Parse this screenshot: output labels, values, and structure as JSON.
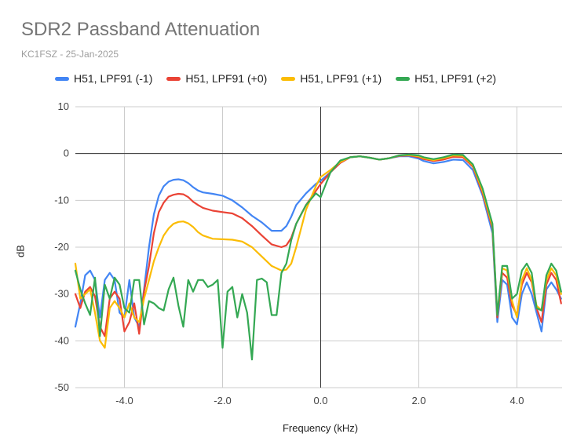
{
  "chart_data": {
    "type": "line",
    "title": "SDR2 Passband Attenuation",
    "subtitle": "KC1FSZ - 25-Jan-2025",
    "xlabel": "Frequency (kHz)",
    "ylabel": "dB",
    "xlim": [
      -5.0,
      4.9
    ],
    "ylim": [
      -50,
      10
    ],
    "xticks": [
      -4.0,
      -2.0,
      0.0,
      2.0,
      4.0
    ],
    "xtick_labels": [
      "-4.0",
      "-2.0",
      "0.0",
      "2.0",
      "4.0"
    ],
    "yticks": [
      10,
      0,
      -10,
      -20,
      -30,
      -40,
      -50
    ],
    "ytick_labels": [
      "10",
      "0",
      "-10",
      "-20",
      "-30",
      "-40",
      "-50"
    ],
    "grid": true,
    "legend_position": "top",
    "series": [
      {
        "name": "H51, LPF91 (-1)",
        "color": "#4285f4",
        "x": [
          -5.0,
          -4.9,
          -4.8,
          -4.7,
          -4.6,
          -4.5,
          -4.4,
          -4.3,
          -4.2,
          -4.1,
          -4.0,
          -3.9,
          -3.8,
          -3.7,
          -3.6,
          -3.5,
          -3.4,
          -3.3,
          -3.2,
          -3.1,
          -3.0,
          -2.9,
          -2.8,
          -2.7,
          -2.6,
          -2.5,
          -2.4,
          -2.2,
          -2.0,
          -1.8,
          -1.6,
          -1.4,
          -1.2,
          -1.0,
          -0.8,
          -0.7,
          -0.6,
          -0.5,
          -0.3,
          -0.1,
          0.0,
          0.2,
          0.4,
          0.6,
          0.8,
          1.0,
          1.2,
          1.4,
          1.6,
          1.8,
          2.0,
          2.1,
          2.3,
          2.5,
          2.7,
          2.9,
          3.1,
          3.3,
          3.5,
          3.6,
          3.7,
          3.8,
          3.9,
          4.0,
          4.1,
          4.2,
          4.3,
          4.4,
          4.5,
          4.6,
          4.7,
          4.8,
          4.9
        ],
        "values": [
          -37,
          -32,
          -26,
          -25,
          -27,
          -35,
          -27,
          -25.5,
          -27,
          -34,
          -35,
          -27,
          -35,
          -37,
          -29,
          -20,
          -13,
          -9,
          -7,
          -6,
          -5.6,
          -5.5,
          -5.7,
          -6.3,
          -7.2,
          -7.9,
          -8.3,
          -8.6,
          -9.0,
          -10.0,
          -11.5,
          -13.3,
          -14.7,
          -16.5,
          -16.5,
          -15.5,
          -13.5,
          -11,
          -8.5,
          -6.5,
          -5.8,
          -4,
          -2,
          -0.8,
          -0.6,
          -0.9,
          -1.3,
          -1.0,
          -0.6,
          -0.6,
          -1.1,
          -1.6,
          -2.1,
          -1.8,
          -1.3,
          -1.4,
          -3.5,
          -9,
          -17,
          -36,
          -27,
          -28,
          -35,
          -36.5,
          -30,
          -27.5,
          -30,
          -34,
          -38,
          -29,
          -27.5,
          -29,
          -31
        ]
      },
      {
        "name": "H51, LPF91 (+0)",
        "color": "#ea4335",
        "x": [
          -5.0,
          -4.9,
          -4.8,
          -4.7,
          -4.6,
          -4.5,
          -4.4,
          -4.3,
          -4.2,
          -4.1,
          -4.0,
          -3.9,
          -3.8,
          -3.7,
          -3.6,
          -3.5,
          -3.4,
          -3.3,
          -3.2,
          -3.1,
          -3.0,
          -2.9,
          -2.8,
          -2.7,
          -2.6,
          -2.5,
          -2.4,
          -2.2,
          -2.0,
          -1.8,
          -1.6,
          -1.4,
          -1.2,
          -1.0,
          -0.8,
          -0.7,
          -0.6,
          -0.5,
          -0.3,
          -0.1,
          0.0,
          0.2,
          0.4,
          0.6,
          0.8,
          1.0,
          1.2,
          1.4,
          1.6,
          1.8,
          2.0,
          2.1,
          2.3,
          2.5,
          2.7,
          2.9,
          3.1,
          3.3,
          3.5,
          3.6,
          3.7,
          3.8,
          3.9,
          4.0,
          4.1,
          4.2,
          4.3,
          4.4,
          4.5,
          4.6,
          4.7,
          4.8,
          4.9
        ],
        "values": [
          -30,
          -33,
          -29.5,
          -28.5,
          -30.5,
          -37,
          -39,
          -31,
          -29.5,
          -31,
          -38,
          -36,
          -32,
          -38.5,
          -29.5,
          -24,
          -17,
          -12.5,
          -10.5,
          -9.2,
          -8.8,
          -8.6,
          -8.7,
          -9.3,
          -10.3,
          -11,
          -11.6,
          -12.2,
          -12.5,
          -12.8,
          -13.8,
          -15.5,
          -17.5,
          -19.4,
          -20,
          -19.6,
          -18,
          -15,
          -11,
          -8,
          -6.5,
          -4,
          -2,
          -0.8,
          -0.6,
          -0.9,
          -1.3,
          -1.0,
          -0.5,
          -0.4,
          -0.8,
          -1.2,
          -1.6,
          -1.3,
          -0.7,
          -0.8,
          -2.8,
          -8.5,
          -16,
          -35,
          -25.5,
          -26.5,
          -32.5,
          -34.5,
          -28,
          -25.5,
          -27.5,
          -33,
          -36,
          -28,
          -25.5,
          -27,
          -32
        ]
      },
      {
        "name": "H51, LPF91 (+1)",
        "color": "#fbbc04",
        "x": [
          -5.0,
          -4.9,
          -4.8,
          -4.7,
          -4.6,
          -4.5,
          -4.4,
          -4.3,
          -4.2,
          -4.1,
          -4.0,
          -3.9,
          -3.8,
          -3.7,
          -3.6,
          -3.5,
          -3.4,
          -3.3,
          -3.2,
          -3.1,
          -3.0,
          -2.9,
          -2.8,
          -2.7,
          -2.6,
          -2.5,
          -2.4,
          -2.2,
          -2.0,
          -1.8,
          -1.6,
          -1.4,
          -1.2,
          -1.0,
          -0.8,
          -0.7,
          -0.6,
          -0.5,
          -0.3,
          -0.1,
          0.0,
          0.2,
          0.4,
          0.6,
          0.8,
          1.0,
          1.2,
          1.4,
          1.6,
          1.8,
          2.0,
          2.1,
          2.3,
          2.5,
          2.7,
          2.9,
          3.1,
          3.3,
          3.5,
          3.6,
          3.7,
          3.8,
          3.9,
          4.0,
          4.1,
          4.2,
          4.3,
          4.4,
          4.5,
          4.6,
          4.7,
          4.8,
          4.9
        ],
        "values": [
          -23.5,
          -31,
          -30,
          -29,
          -34,
          -40,
          -41.5,
          -33,
          -31.5,
          -33,
          -35,
          -32,
          -35,
          -36,
          -31,
          -27,
          -23,
          -20,
          -17.5,
          -16,
          -15,
          -14.6,
          -14.5,
          -14.9,
          -15.7,
          -16.8,
          -17.5,
          -18.2,
          -18.3,
          -18.4,
          -18.8,
          -20,
          -22,
          -24,
          -25,
          -24.8,
          -23.5,
          -20,
          -12,
          -7,
          -5,
          -3.5,
          -1.8,
          -0.8,
          -0.6,
          -0.9,
          -1.3,
          -1.0,
          -0.4,
          -0.3,
          -0.6,
          -1.0,
          -1.4,
          -1.0,
          -0.4,
          -0.5,
          -2.5,
          -8,
          -15.5,
          -34.5,
          -24.5,
          -25,
          -31.5,
          -35,
          -27,
          -24.5,
          -27,
          -32.5,
          -33.5,
          -27,
          -24.5,
          -26,
          -30
        ]
      },
      {
        "name": "H51, LPF91 (+2)",
        "color": "#34a853",
        "x": [
          -5.0,
          -4.9,
          -4.8,
          -4.7,
          -4.6,
          -4.5,
          -4.4,
          -4.3,
          -4.2,
          -4.1,
          -4.0,
          -3.9,
          -3.8,
          -3.7,
          -3.6,
          -3.5,
          -3.4,
          -3.3,
          -3.2,
          -3.1,
          -3.0,
          -2.9,
          -2.8,
          -2.7,
          -2.6,
          -2.5,
          -2.4,
          -2.3,
          -2.2,
          -2.1,
          -2.0,
          -1.9,
          -1.8,
          -1.7,
          -1.6,
          -1.5,
          -1.4,
          -1.3,
          -1.2,
          -1.1,
          -1.0,
          -0.9,
          -0.8,
          -0.7,
          -0.6,
          -0.5,
          -0.3,
          -0.1,
          0.0,
          0.2,
          0.4,
          0.6,
          0.8,
          1.0,
          1.2,
          1.4,
          1.6,
          1.8,
          2.0,
          2.1,
          2.3,
          2.5,
          2.7,
          2.9,
          3.1,
          3.3,
          3.5,
          3.6,
          3.7,
          3.8,
          3.9,
          4.0,
          4.1,
          4.2,
          4.3,
          4.4,
          4.5,
          4.6,
          4.7,
          4.8,
          4.9
        ],
        "values": [
          -25,
          -29,
          -32,
          -34.5,
          -26.5,
          -39,
          -28,
          -31,
          -26.5,
          -28,
          -33,
          -34,
          -27,
          -27,
          -36.5,
          -31.5,
          -32,
          -33,
          -33.5,
          -29,
          -26.5,
          -32.5,
          -37,
          -27,
          -29.5,
          -27,
          -27,
          -28.5,
          -28,
          -27,
          -41.5,
          -29.5,
          -28.5,
          -35,
          -30,
          -34,
          -44,
          -27,
          -26.7,
          -27.5,
          -34.5,
          -34.5,
          -25.5,
          -23.5,
          -18.5,
          -15,
          -11,
          -8.5,
          -9.3,
          -4,
          -1.5,
          -0.8,
          -0.6,
          -0.9,
          -1.3,
          -1.0,
          -0.4,
          -0.2,
          -0.4,
          -0.8,
          -1.2,
          -0.8,
          -0.2,
          -0.3,
          -2.3,
          -7.5,
          -15,
          -34.5,
          -24,
          -24,
          -31,
          -30,
          -25,
          -23.5,
          -25.5,
          -33,
          -33.5,
          -26,
          -23.5,
          -25,
          -29.5
        ]
      }
    ]
  }
}
